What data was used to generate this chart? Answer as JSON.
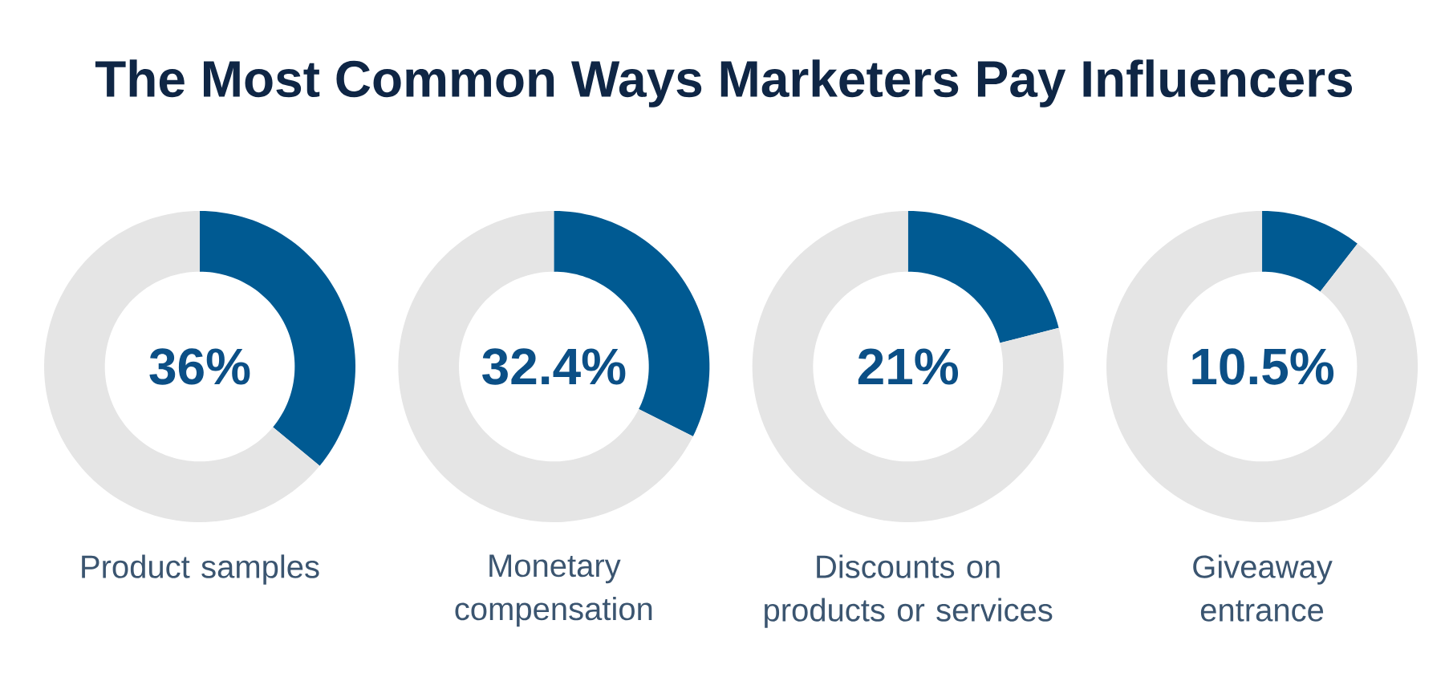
{
  "chart_data": [
    {
      "type": "donut",
      "title": "The Most Common Ways Marketers Pay Influencers",
      "xlabel": "Product samples",
      "categories": [
        null,
        null
      ],
      "values": [
        36,
        64
      ],
      "colors": [
        "#005a92",
        "#e5e5e5"
      ],
      "annotations": [
        "36%"
      ]
    },
    {
      "type": "donut",
      "xlabel": "Monetary\ncompensation",
      "categories": [
        null,
        null
      ],
      "values": [
        32.4,
        67.6
      ],
      "colors": [
        "#005a92",
        "#e5e5e5"
      ],
      "annotations": [
        "32.4%"
      ]
    },
    {
      "type": "donut",
      "xlabel": "Discounts on\nproducts or services",
      "categories": [
        null,
        null
      ],
      "values": [
        21,
        79
      ],
      "colors": [
        "#005a92",
        "#e5e5e5"
      ],
      "annotations": [
        "21%"
      ]
    },
    {
      "type": "donut",
      "xlabel": "Giveaway\nentrance",
      "categories": [
        null,
        null
      ],
      "values": [
        10.5,
        89.5
      ],
      "colors": [
        "#005a92",
        "#e5e5e5"
      ],
      "annotations": [
        "10.5%"
      ]
    }
  ]
}
